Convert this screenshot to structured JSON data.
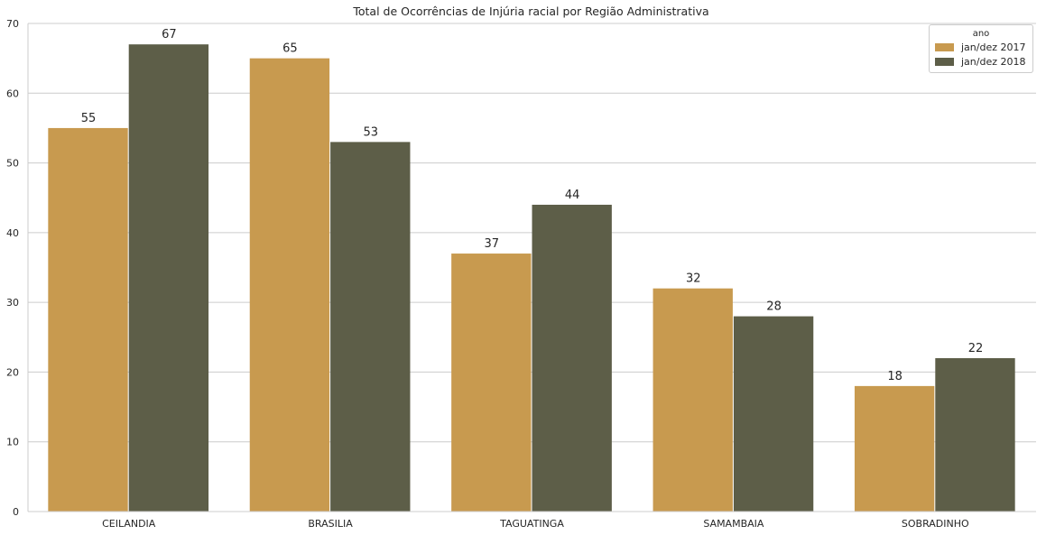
{
  "chart_data": {
    "type": "bar",
    "title": "Total de Ocorrências de Injúria racial por Região Administrativa",
    "xlabel": "",
    "ylabel": "",
    "categories": [
      "CEILANDIA",
      "BRASILIA",
      "TAGUATINGA",
      "SAMAMBAIA",
      "SOBRADINHO"
    ],
    "series": [
      {
        "name": "jan/dez 2017",
        "color": "#c89a4f",
        "values": [
          55,
          65,
          37,
          32,
          18
        ]
      },
      {
        "name": "jan/dez 2018",
        "color": "#5d5e48",
        "values": [
          67,
          53,
          44,
          28,
          22
        ]
      }
    ],
    "ylim": [
      0,
      70
    ],
    "yticks": [
      0,
      10,
      20,
      30,
      40,
      50,
      60,
      70
    ],
    "grid": "horizontal",
    "legend": {
      "title": "ano",
      "placement": "top-right"
    }
  }
}
